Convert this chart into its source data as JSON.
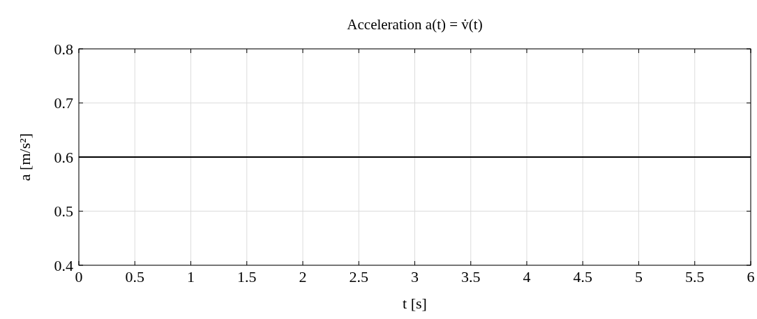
{
  "chart_data": {
    "type": "line",
    "title": "Acceleration a(t) = v̇(t)",
    "xlabel": "t [s]",
    "ylabel": "a [m/s²]",
    "x": [
      0,
      6
    ],
    "series": [
      {
        "color": "#000000",
        "values": [
          0.6,
          0.6
        ]
      }
    ],
    "xlim": [
      0,
      6
    ],
    "xticks": [
      0,
      0.5,
      1,
      1.5,
      2,
      2.5,
      3,
      3.5,
      4,
      4.5,
      5,
      5.5,
      6
    ],
    "ylim": [
      0.4,
      0.8
    ],
    "yticks": [
      0.4,
      0.5,
      0.6,
      0.7,
      0.8
    ],
    "grid": true,
    "marker": "none",
    "line_style": "solid"
  }
}
